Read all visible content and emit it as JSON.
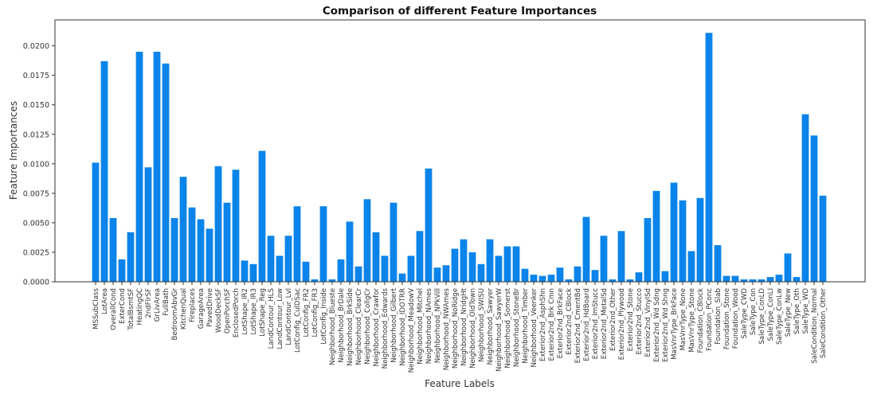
{
  "chart_data": {
    "type": "bar",
    "title": "Comparison of different Feature Importances",
    "xlabel": "Feature Labels",
    "ylabel": "Feature Importances",
    "ylim": [
      0,
      0.0222
    ],
    "yticks": [
      "0.0000",
      "0.0025",
      "0.0050",
      "0.0075",
      "0.0100",
      "0.0125",
      "0.0150",
      "0.0175",
      "0.0200"
    ],
    "bar_color": "#0a84ea",
    "grid": false,
    "categories": [
      "MSSubClass",
      "LotArea",
      "OverallCond",
      "ExterCond",
      "TotalBsmtSF",
      "HeatingQC",
      "2ndFlrSF",
      "GrLivArea",
      "FullBath",
      "BedroomAbvGr",
      "KitchenQual",
      "Fireplaces",
      "GarageArea",
      "PavedDrive",
      "WoodDeckSF",
      "OpenPorchSF",
      "EnclosedPorch",
      "LotShape_IR2",
      "LotShape_IR3",
      "LotShape_Reg",
      "LandContour_HLS",
      "LandContour_Low",
      "LandContour_Lvl",
      "LotConfig_CulDSac",
      "LotConfig_FR2",
      "LotConfig_FR3",
      "LotConfig_Inside",
      "Neighborhood_Blueste",
      "Neighborhood_BrDale",
      "Neighborhood_BrkSide",
      "Neighborhood_ClearCr",
      "Neighborhood_CollgCr",
      "Neighborhood_Crawfor",
      "Neighborhood_Edwards",
      "Neighborhood_Gilbert",
      "Neighborhood_IDOTRR",
      "Neighborhood_MeadowV",
      "Neighborhood_Mitchel",
      "Neighborhood_NAmes",
      "Neighborhood_NPkVill",
      "Neighborhood_NWAmes",
      "Neighborhood_NoRidge",
      "Neighborhood_NridgHt",
      "Neighborhood_OldTown",
      "Neighborhood_SWISU",
      "Neighborhood_Sawyer",
      "Neighborhood_SawyerW",
      "Neighborhood_Somerst",
      "Neighborhood_StoneBr",
      "Neighborhood_Timber",
      "Neighborhood_Veenker",
      "Exterior2nd_AsphShn",
      "Exterior2nd_Brk Cmn",
      "Exterior2nd_BrkFace",
      "Exterior2nd_CBlock",
      "Exterior2nd_CmentBd",
      "Exterior2nd_HdBoard",
      "Exterior2nd_ImStucc",
      "Exterior2nd_MetalSd",
      "Exterior2nd_Other",
      "Exterior2nd_Plywood",
      "Exterior2nd_Stone",
      "Exterior2nd_Stucco",
      "Exterior2nd_VinylSd",
      "Exterior2nd_Wd Sdng",
      "Exterior2nd_Wd Shng",
      "MasVnrType_BrkFace",
      "MasVnrType_None",
      "MasVnrType_Stone",
      "Foundation_CBlock",
      "Foundation_PConc",
      "Foundation_Slab",
      "Foundation_Stone",
      "Foundation_Wood",
      "SaleType_CWD",
      "SaleType_Con",
      "SaleType_ConLD",
      "SaleType_ConLI",
      "SaleType_ConLw",
      "SaleType_New",
      "SaleType_Oth",
      "SaleType_WD",
      "SaleCondition_Normal",
      "SaleCondition_Other"
    ],
    "values": [
      0.0101,
      0.0187,
      0.0054,
      0.0019,
      0.0042,
      0.0195,
      0.0097,
      0.0195,
      0.0185,
      0.0054,
      0.0089,
      0.0063,
      0.0053,
      0.0045,
      0.0098,
      0.0067,
      0.0095,
      0.0018,
      0.0015,
      0.0111,
      0.0039,
      0.0022,
      0.0039,
      0.0064,
      0.0017,
      0.0002,
      0.0064,
      0.0002,
      0.0019,
      0.0051,
      0.0013,
      0.007,
      0.0042,
      0.0022,
      0.0067,
      0.0007,
      0.0022,
      0.0043,
      0.0096,
      0.0012,
      0.0014,
      0.0028,
      0.0036,
      0.0025,
      0.0015,
      0.0036,
      0.0022,
      0.003,
      0.003,
      0.0011,
      0.0006,
      0.0005,
      0.0006,
      0.0012,
      0.0002,
      0.0013,
      0.0055,
      0.001,
      0.0039,
      0.0002,
      0.0043,
      0.0002,
      0.0008,
      0.0054,
      0.0077,
      0.0009,
      0.0084,
      0.0069,
      0.0026,
      0.0071,
      0.0211,
      0.0031,
      0.0005,
      0.0005,
      0.0002,
      0.0002,
      0.0002,
      0.0004,
      0.0006,
      0.0024,
      0.0004,
      0.0142,
      0.0124,
      0.0073
    ]
  }
}
